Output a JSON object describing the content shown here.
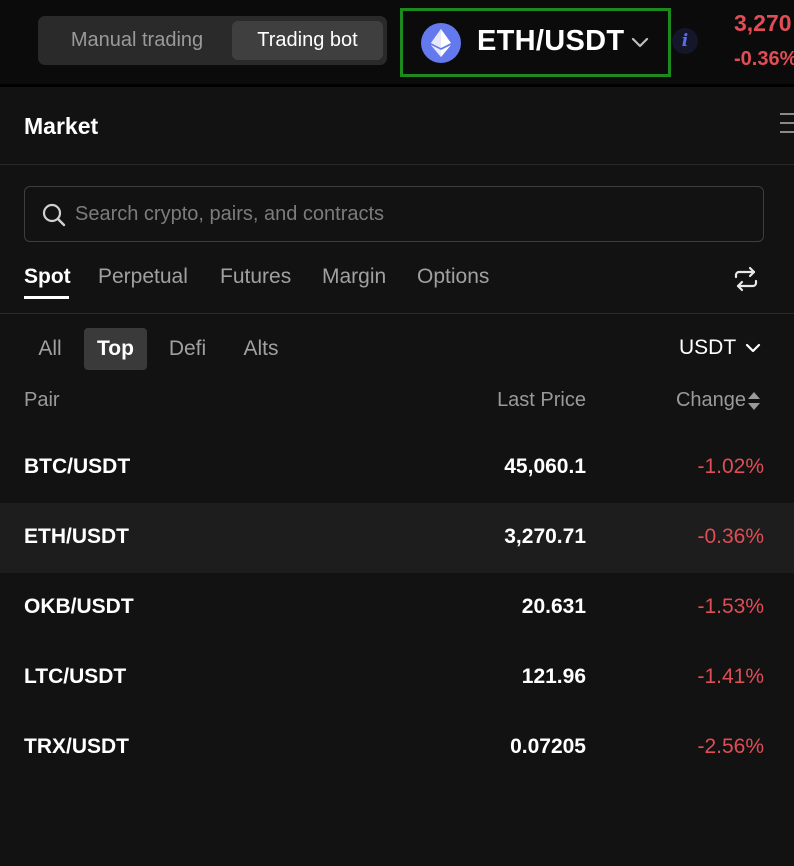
{
  "header": {
    "mode_manual_label": "Manual trading",
    "mode_bot_label": "Trading bot",
    "pair_name": "ETH/USDT",
    "pair_icon": "ethereum-icon",
    "info_label": "i",
    "ticker_price": "3,270",
    "ticker_change": "-0.36%"
  },
  "market": {
    "title": "Market",
    "search_placeholder": "Search crypto, pairs, and contracts",
    "tabs": [
      {
        "label": "Spot",
        "active": true
      },
      {
        "label": "Perpetual",
        "active": false
      },
      {
        "label": "Futures",
        "active": false
      },
      {
        "label": "Margin",
        "active": false
      },
      {
        "label": "Options",
        "active": false
      }
    ],
    "filters": [
      {
        "label": "All",
        "active": false
      },
      {
        "label": "Top",
        "active": true
      },
      {
        "label": "Defi",
        "active": false
      },
      {
        "label": "Alts",
        "active": false
      }
    ],
    "quote_currency": "USDT",
    "columns": {
      "pair": "Pair",
      "last_price": "Last Price",
      "change": "Change"
    },
    "rows": [
      {
        "pair": "BTC/USDT",
        "price": "45,060.1",
        "change": "-1.02%",
        "highlight": false
      },
      {
        "pair": "ETH/USDT",
        "price": "3,270.71",
        "change": "-0.36%",
        "highlight": true
      },
      {
        "pair": "OKB/USDT",
        "price": "20.631",
        "change": "-1.53%",
        "highlight": false
      },
      {
        "pair": "LTC/USDT",
        "price": "121.96",
        "change": "-1.41%",
        "highlight": false
      },
      {
        "pair": "TRX/USDT",
        "price": "0.07205",
        "change": "-2.56%",
        "highlight": false
      }
    ]
  },
  "colors": {
    "negative": "#e04d55",
    "accent_green_border": "#1c8a1c",
    "eth_blue": "#6579ee",
    "background": "#121212"
  },
  "icons": [
    "ethereum-icon",
    "chevron-down-icon",
    "info-icon",
    "menu-icon",
    "search-icon",
    "swap-icon",
    "sort-icon"
  ]
}
